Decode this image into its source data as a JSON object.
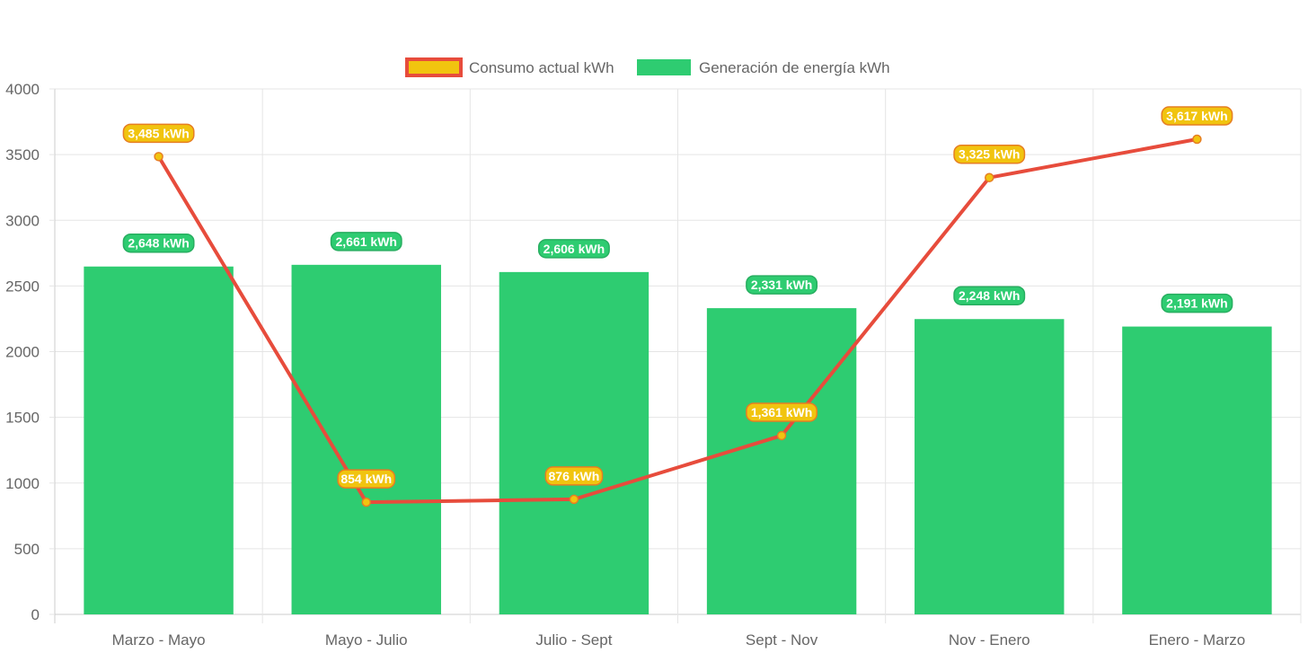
{
  "colors": {
    "bar_fill": "#2ecc71",
    "line_stroke": "#e74c3c",
    "point_fill": "#f1c40f",
    "consumo_label_bg": "#f1c40f",
    "consumo_label_border": "#e67e22",
    "generacion_label_bg": "#2ecc71",
    "generacion_label_border": "#27ae60",
    "grid": "#e5e5e5",
    "axis": "#cccccc",
    "text": "#666666"
  },
  "chart_data": {
    "type": "bar",
    "categories": [
      "Marzo - Mayo",
      "Mayo - Julio",
      "Julio - Sept",
      "Sept - Nov",
      "Nov - Enero",
      "Enero - Marzo"
    ],
    "ylim": [
      0,
      4000
    ],
    "yticks": [
      0,
      500,
      1000,
      1500,
      2000,
      2500,
      3000,
      3500,
      4000
    ],
    "grid": true,
    "legend_position": "top-center",
    "xlabel": "",
    "ylabel": "",
    "series": [
      {
        "name": "Consumo actual kWh",
        "render": "line",
        "values": [
          3485,
          854,
          876,
          1361,
          3325,
          3617
        ],
        "data_labels": [
          "3,485 kWh",
          "854 kWh",
          "876 kWh",
          "1,361 kWh",
          "3,325 kWh",
          "3,617 kWh"
        ]
      },
      {
        "name": "Generación de energía kWh",
        "render": "bar",
        "values": [
          2648,
          2661,
          2606,
          2331,
          2248,
          2191
        ],
        "data_labels": [
          "2,648 kWh",
          "2,661 kWh",
          "2,606 kWh",
          "2,331 kWh",
          "2,248 kWh",
          "2,191 kWh"
        ]
      }
    ]
  }
}
